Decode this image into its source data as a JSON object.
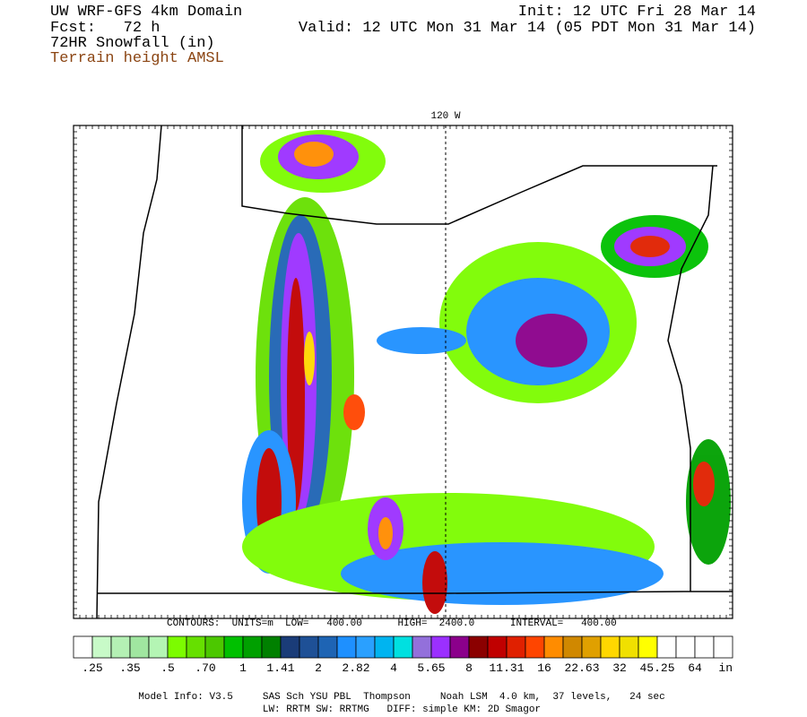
{
  "header": {
    "left": [
      "UW WRF-GFS 4km Domain",
      "Fcst:   72 h",
      "72HR Snowfall (in)",
      "Terrain height AMSL"
    ],
    "right": [
      "Init: 12 UTC Fri 28 Mar 14",
      "Valid: 12 UTC Mon 31 Mar 14 (05 PDT Mon 31 Mar 14)"
    ]
  },
  "map": {
    "meridian_label": "120 W",
    "contour_info": "CONTOURS:  UNITS=m  LOW=   400.00      HIGH=  2400.0      INTERVAL=   400.00"
  },
  "colorbar": {
    "colors": [
      "#ffffff",
      "#c8fac8",
      "#b4f0b4",
      "#a0e6a0",
      "#b4f5b4",
      "#7cfc00",
      "#66e000",
      "#4cc800",
      "#00c000",
      "#00a000",
      "#008000",
      "#1a3c78",
      "#1e5096",
      "#1e64b4",
      "#1e90ff",
      "#2aa0ff",
      "#00b4f0",
      "#00e0e0",
      "#9370db",
      "#9b30ff",
      "#8b008b",
      "#8b0000",
      "#c00000",
      "#e02000",
      "#ff4500",
      "#ff8c00",
      "#d08800",
      "#e0a000",
      "#ffd700",
      "#f0e000",
      "#ffff00",
      "#ffffff",
      "#ffffff",
      "#ffffff",
      "#ffffff"
    ],
    "labels": [
      ".25",
      ".35",
      ".5",
      ".70",
      "1",
      "1.41",
      "2",
      "2.82",
      "4",
      "5.65",
      "8",
      "11.31",
      "16",
      "22.63",
      "32",
      "45.25",
      "64"
    ],
    "unit": "in"
  },
  "footer": [
    "Model Info: V3.5     SAS Sch YSU PBL  Thompson     Noah LSM  4.0 km,  37 levels,   24 sec",
    "LW: RRTM SW: RRTMG   DIFF: simple KM: 2D Smagor"
  ]
}
